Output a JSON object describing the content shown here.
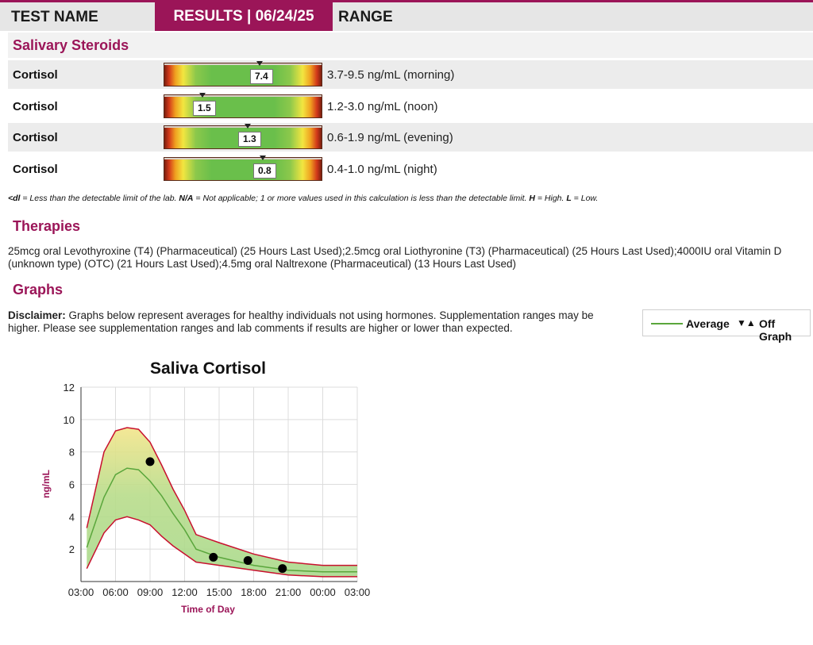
{
  "header": {
    "test_name": "TEST NAME",
    "results": "RESULTS | 06/24/25",
    "range": "RANGE"
  },
  "sections": {
    "steroids": "Salivary Steroids",
    "therapies": "Therapies",
    "graphs": "Graphs"
  },
  "tests": [
    {
      "name": "Cortisol",
      "value": "7.4",
      "value_num": 7.4,
      "low": 3.7,
      "high": 9.5,
      "range": "3.7-9.5 ng/mL (morning)"
    },
    {
      "name": "Cortisol",
      "value": "1.5",
      "value_num": 1.5,
      "low": 1.2,
      "high": 3.0,
      "range": "1.2-3.0 ng/mL (noon)"
    },
    {
      "name": "Cortisol",
      "value": "1.3",
      "value_num": 1.3,
      "low": 0.6,
      "high": 1.9,
      "range": "0.6-1.9 ng/mL (evening)"
    },
    {
      "name": "Cortisol",
      "value": "0.8",
      "value_num": 0.8,
      "low": 0.4,
      "high": 1.0,
      "range": "0.4-1.0 ng/mL (night)"
    }
  ],
  "legend_note": {
    "dl_key": "<dl",
    "dl_text": " = Less than the detectable limit of the lab. ",
    "na_key": "N/A",
    "na_text": " = Not applicable; 1 or more values used in this calculation is less than the detectable limit. ",
    "h_key": "H",
    "h_text": " = High. ",
    "l_key": "L",
    "l_text": " = Low."
  },
  "therapies_text": "25mcg oral Levothyroxine (T4) (Pharmaceutical) (25 Hours Last Used);2.5mcg oral Liothyronine (T3) (Pharmaceutical) (25 Hours Last Used);4000IU oral Vitamin D (unknown type) (OTC) (21 Hours Last Used);4.5mg oral Naltrexone (Pharmaceutical) (13 Hours Last Used)",
  "disclaimer": {
    "label": "Disclaimer:",
    "text": " Graphs below represent averages for healthy individuals not using hormones. Supplementation ranges may be higher. Please see supplementation ranges and lab comments if results are higher or lower than expected."
  },
  "legend": {
    "average": "Average",
    "triangles": "▼▲",
    "off_graph": "Off Graph"
  },
  "colors": {
    "brand": "#9b1558",
    "average_line": "#5aa63c",
    "band_outline": "#c8102e",
    "band_fill": "#b8dc8a"
  },
  "chart_data": {
    "type": "line",
    "title": "Saliva Cortisol",
    "xlabel": "Time of Day",
    "ylabel": "ng/mL",
    "x_ticks": [
      "03:00",
      "06:00",
      "09:00",
      "12:00",
      "15:00",
      "18:00",
      "21:00",
      "00:00",
      "03:00"
    ],
    "y_ticks": [
      2,
      4,
      6,
      8,
      10,
      12
    ],
    "ylim": [
      0,
      12
    ],
    "grid": true,
    "band_x_hours": [
      3.5,
      5,
      6,
      7,
      8,
      9,
      10,
      11,
      12,
      13,
      15,
      18,
      21,
      24,
      27
    ],
    "series": [
      {
        "name": "Average",
        "values": [
          2.1,
          5.2,
          6.6,
          7.0,
          6.9,
          6.2,
          5.3,
          4.2,
          3.2,
          2.0,
          1.5,
          1.0,
          0.7,
          0.6,
          0.6
        ]
      },
      {
        "values": [
          3.3,
          8.0,
          9.3,
          9.5,
          9.4,
          8.6,
          7.2,
          5.7,
          4.4,
          2.9,
          2.4,
          1.7,
          1.2,
          1.0,
          1.0
        ]
      },
      {
        "values": [
          0.8,
          3.0,
          3.8,
          4.0,
          3.8,
          3.5,
          2.8,
          2.2,
          1.7,
          1.2,
          1.0,
          0.7,
          0.4,
          0.3,
          0.3
        ]
      }
    ],
    "points": [
      {
        "x_hour": 9,
        "y": 7.4
      },
      {
        "x_hour": 14.5,
        "y": 1.5
      },
      {
        "x_hour": 17.5,
        "y": 1.3
      },
      {
        "x_hour": 20.5,
        "y": 0.8
      }
    ]
  }
}
